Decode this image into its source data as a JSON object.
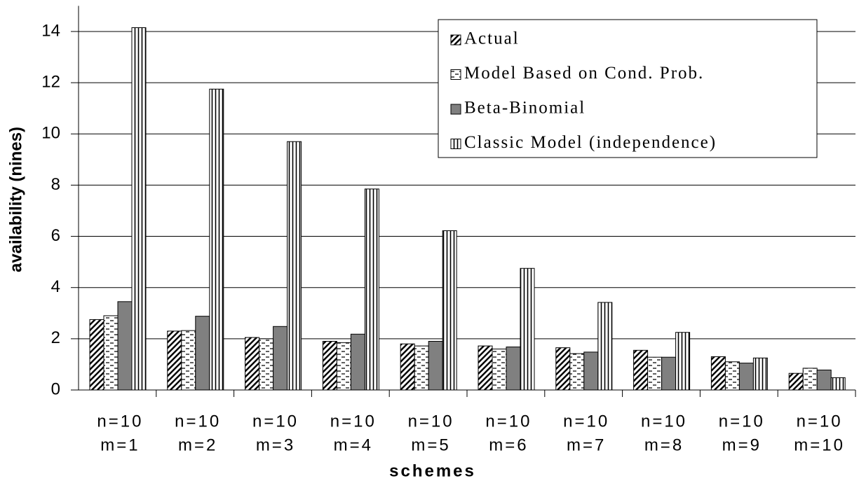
{
  "chart_data": {
    "type": "bar",
    "categories": [
      [
        "n=10",
        "m=1"
      ],
      [
        "n=10",
        "m=2"
      ],
      [
        "n=10",
        "m=3"
      ],
      [
        "n=10",
        "m=4"
      ],
      [
        "n=10",
        "m=5"
      ],
      [
        "n=10",
        "m=6"
      ],
      [
        "n=10",
        "m=7"
      ],
      [
        "n=10",
        "m=8"
      ],
      [
        "n=10",
        "m=9"
      ],
      [
        "n=10",
        "m=10"
      ]
    ],
    "series": [
      {
        "name": "Actual",
        "color": "#808080",
        "pattern": "diagonal",
        "values": [
          2.75,
          2.3,
          2.05,
          1.9,
          1.8,
          1.72,
          1.65,
          1.55,
          1.3,
          0.65
        ]
      },
      {
        "name": "Model Based on Cond. Prob.",
        "color": "#a0a0a0",
        "pattern": "dash",
        "values": [
          2.9,
          2.32,
          2.0,
          1.85,
          1.72,
          1.6,
          1.42,
          1.28,
          1.1,
          0.85
        ]
      },
      {
        "name": "Beta-Binomial",
        "color": "#808080",
        "pattern": "solid",
        "values": [
          3.45,
          2.88,
          2.48,
          2.18,
          1.9,
          1.68,
          1.48,
          1.28,
          1.05,
          0.78
        ]
      },
      {
        "name": "Classic Model (independence)",
        "color": "#909090",
        "pattern": "vertical",
        "values": [
          14.15,
          11.75,
          9.7,
          7.85,
          6.22,
          4.75,
          3.42,
          2.25,
          1.25,
          0.48
        ]
      }
    ],
    "ylim": [
      0,
      15
    ],
    "yticks": [
      0,
      2,
      4,
      6,
      8,
      10,
      12,
      14
    ],
    "grid": true,
    "legend": "top-right",
    "xlabel": "schemes",
    "ylabel": "availability (nines)"
  }
}
